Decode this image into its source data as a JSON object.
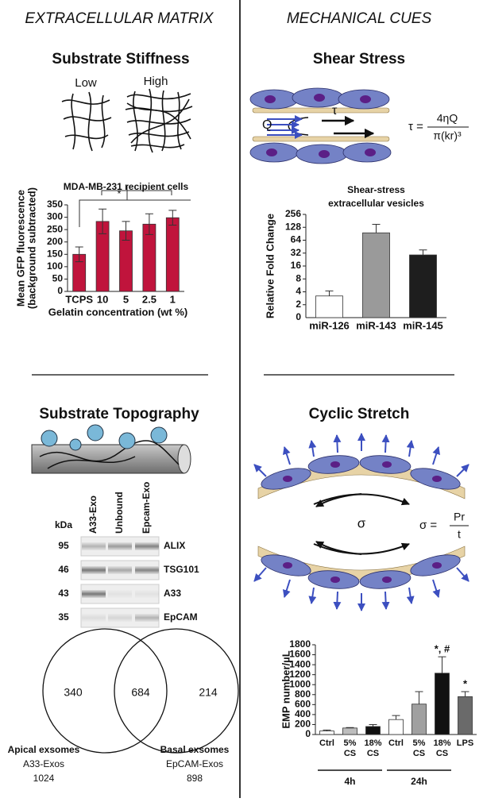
{
  "left_header": "EXTRACELLULAR MATRIX",
  "right_header": "MECHANICAL CUES",
  "stiffness": {
    "title": "Substrate Stiffness",
    "low": "Low",
    "high": "High"
  },
  "shear": {
    "title": "Shear Stress",
    "flow": "Q",
    "tau": "τ",
    "formula": {
      "lhs": "τ =",
      "numerator": "4ηQ",
      "denominator": "π(kr)³"
    }
  },
  "topography": {
    "title": "Substrate Topography",
    "blot": {
      "unit": "kDa",
      "columns": [
        "A33-Exo",
        "Unbound",
        "Epcam-Exo"
      ],
      "rows": [
        {
          "kda": 95,
          "label": "ALIX"
        },
        {
          "kda": 46,
          "label": "TSG101"
        },
        {
          "kda": 43,
          "label": "A33"
        },
        {
          "kda": 35,
          "label": "EpCAM"
        }
      ]
    },
    "venn": {
      "left": 340,
      "overlap": 684,
      "right": 214,
      "left_label": [
        "Apical exsomes",
        "A33-Exos",
        "1024"
      ],
      "right_label": [
        "Basal exsomes",
        "EpCAM-Exos",
        "898"
      ]
    }
  },
  "stretch": {
    "title": "Cyclic Stretch",
    "sigma": "σ",
    "formula": {
      "lhs": "σ =",
      "numerator": "Pr",
      "denominator": "t"
    }
  },
  "chart_data": [
    {
      "type": "bar",
      "title": "MDA-MB-231 recipient cells",
      "y_label": [
        "Mean GFP fluorescence",
        "(background subtracted)"
      ],
      "x_label": "Gelatin concentration (wt %)",
      "categories": [
        "TCPS",
        "10",
        "5",
        "2.5",
        "1"
      ],
      "values": [
        150,
        283,
        245,
        272,
        298
      ],
      "errors": [
        30,
        50,
        38,
        42,
        30
      ],
      "error_bars": "both",
      "color": "#c0143c",
      "ylim": [
        0,
        350
      ],
      "yticks": [
        0,
        50,
        100,
        150,
        200,
        250,
        300,
        350
      ],
      "significance": "*"
    },
    {
      "type": "bar",
      "title": [
        "Shear-stress",
        "extracellular vesicles"
      ],
      "y_label": [
        "Relative Fold Change"
      ],
      "categories": [
        "miR-126",
        "miR-143",
        "miR-145"
      ],
      "values": [
        3.2,
        95,
        29
      ],
      "errors": [
        1,
        55,
        9
      ],
      "error_bars": "upper",
      "colors": [
        "#ffffff",
        "#9a9a9a",
        "#1e1e1e"
      ],
      "log_base": 2,
      "ylim": [
        1,
        256
      ],
      "y_origin_label": "0",
      "yticks": [
        2,
        4,
        8,
        16,
        32,
        64,
        128,
        256
      ]
    },
    {
      "type": "bar",
      "y_label": [
        "EMP number/µL"
      ],
      "categories": [
        "Ctrl",
        "5% CS",
        "18% CS",
        "Ctrl",
        "5% CS",
        "18% CS",
        "LPS"
      ],
      "values": [
        70,
        130,
        160,
        300,
        610,
        1230,
        760
      ],
      "errors": [
        20,
        10,
        40,
        80,
        250,
        330,
        100
      ],
      "error_bars": "upper",
      "colors": [
        "#ffffff",
        "#bdbdbd",
        "#111111",
        "#ffffff",
        "#a0a0a0",
        "#111111",
        "#6a6a6a"
      ],
      "markers": [
        null,
        null,
        null,
        null,
        null,
        "*, #",
        "*"
      ],
      "groups": [
        {
          "label": "4h",
          "span": 3
        },
        {
          "label": "24h",
          "span": 3
        }
      ],
      "ylim": [
        0,
        1800
      ],
      "yticks": [
        0,
        200,
        400,
        600,
        800,
        1000,
        1200,
        1400,
        1600,
        1800
      ]
    }
  ]
}
